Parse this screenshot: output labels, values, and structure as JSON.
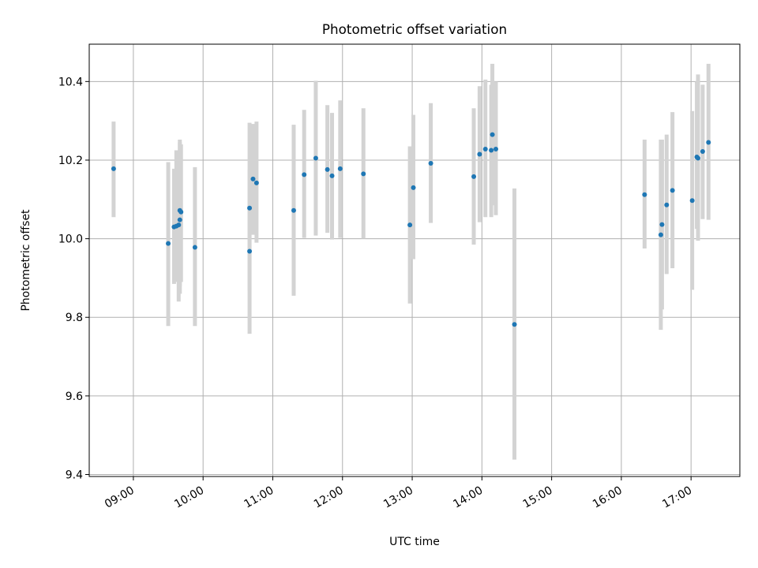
{
  "chart_data": {
    "type": "scatter",
    "title": "Photometric offset variation",
    "xlabel": "UTC time",
    "ylabel": "Photometric offset",
    "xlim": [
      "08:22",
      "17:42"
    ],
    "ylim": [
      9.395,
      10.495
    ],
    "grid": true,
    "x_ticks": [
      "09:00",
      "10:00",
      "11:00",
      "12:00",
      "13:00",
      "14:00",
      "15:00",
      "16:00",
      "17:00"
    ],
    "y_ticks": [
      "9.4",
      "9.6",
      "9.8",
      "10.0",
      "10.2",
      "10.4"
    ],
    "colors": {
      "marker": "#1f77b4",
      "errorbar": "#d3d3d3",
      "grid": "#b0b0b0"
    },
    "points": [
      {
        "time": "08:43",
        "y": 10.178,
        "err_low": 10.055,
        "err_high": 10.298
      },
      {
        "time": "09:30",
        "y": 9.988,
        "err_low": 9.778,
        "err_high": 10.195
      },
      {
        "time": "09:35",
        "y": 10.03,
        "err_low": 9.885,
        "err_high": 10.178
      },
      {
        "time": "09:37",
        "y": 10.032,
        "err_low": 9.89,
        "err_high": 10.225
      },
      {
        "time": "09:39",
        "y": 10.035,
        "err_low": 9.84,
        "err_high": 10.225
      },
      {
        "time": "09:40",
        "y": 10.048,
        "err_low": 9.86,
        "err_high": 10.252
      },
      {
        "time": "09:40",
        "y": 10.072,
        "err_low": 9.88,
        "err_high": 10.245
      },
      {
        "time": "09:41",
        "y": 10.068,
        "err_low": 9.89,
        "err_high": 10.24
      },
      {
        "time": "09:53",
        "y": 9.978,
        "err_low": 9.778,
        "err_high": 10.182
      },
      {
        "time": "10:40",
        "y": 9.968,
        "err_low": 9.758,
        "err_high": 10.175
      },
      {
        "time": "10:40",
        "y": 10.078,
        "err_low": 9.87,
        "err_high": 10.295
      },
      {
        "time": "10:43",
        "y": 10.152,
        "err_low": 10.01,
        "err_high": 10.292
      },
      {
        "time": "10:46",
        "y": 10.142,
        "err_low": 9.99,
        "err_high": 10.298
      },
      {
        "time": "11:18",
        "y": 10.072,
        "err_low": 9.855,
        "err_high": 10.29
      },
      {
        "time": "11:27",
        "y": 10.163,
        "err_low": 10.002,
        "err_high": 10.328
      },
      {
        "time": "11:37",
        "y": 10.205,
        "err_low": 10.008,
        "err_high": 10.402
      },
      {
        "time": "11:47",
        "y": 10.176,
        "err_low": 10.015,
        "err_high": 10.34
      },
      {
        "time": "11:51",
        "y": 10.16,
        "err_low": 9.998,
        "err_high": 10.32
      },
      {
        "time": "11:58",
        "y": 10.178,
        "err_low": 10.002,
        "err_high": 10.352
      },
      {
        "time": "12:18",
        "y": 10.165,
        "err_low": 10.0,
        "err_high": 10.332
      },
      {
        "time": "12:58",
        "y": 10.035,
        "err_low": 9.835,
        "err_high": 10.235
      },
      {
        "time": "13:01",
        "y": 10.13,
        "err_low": 9.948,
        "err_high": 10.315
      },
      {
        "time": "13:16",
        "y": 10.192,
        "err_low": 10.04,
        "err_high": 10.345
      },
      {
        "time": "13:53",
        "y": 10.158,
        "err_low": 9.985,
        "err_high": 10.332
      },
      {
        "time": "13:58",
        "y": 10.215,
        "err_low": 10.042,
        "err_high": 10.388
      },
      {
        "time": "14:03",
        "y": 10.228,
        "err_low": 10.055,
        "err_high": 10.405
      },
      {
        "time": "14:08",
        "y": 10.225,
        "err_low": 10.055,
        "err_high": 10.392
      },
      {
        "time": "14:09",
        "y": 10.265,
        "err_low": 10.085,
        "err_high": 10.445
      },
      {
        "time": "14:12",
        "y": 10.228,
        "err_low": 10.06,
        "err_high": 10.4
      },
      {
        "time": "14:28",
        "y": 9.782,
        "err_low": 9.438,
        "err_high": 10.128
      },
      {
        "time": "16:20",
        "y": 10.112,
        "err_low": 9.975,
        "err_high": 10.252
      },
      {
        "time": "16:34",
        "y": 10.01,
        "err_low": 9.768,
        "err_high": 10.252
      },
      {
        "time": "16:35",
        "y": 10.036,
        "err_low": 9.82,
        "err_high": 10.252
      },
      {
        "time": "16:39",
        "y": 10.086,
        "err_low": 9.91,
        "err_high": 10.265
      },
      {
        "time": "16:44",
        "y": 10.123,
        "err_low": 9.925,
        "err_high": 10.322
      },
      {
        "time": "17:01",
        "y": 10.097,
        "err_low": 9.87,
        "err_high": 10.325
      },
      {
        "time": "17:05",
        "y": 10.208,
        "err_low": 10.025,
        "err_high": 10.4
      },
      {
        "time": "17:06",
        "y": 10.205,
        "err_low": 9.995,
        "err_high": 10.418
      },
      {
        "time": "17:10",
        "y": 10.222,
        "err_low": 10.05,
        "err_high": 10.392
      },
      {
        "time": "17:15",
        "y": 10.245,
        "err_low": 10.048,
        "err_high": 10.445
      }
    ]
  }
}
